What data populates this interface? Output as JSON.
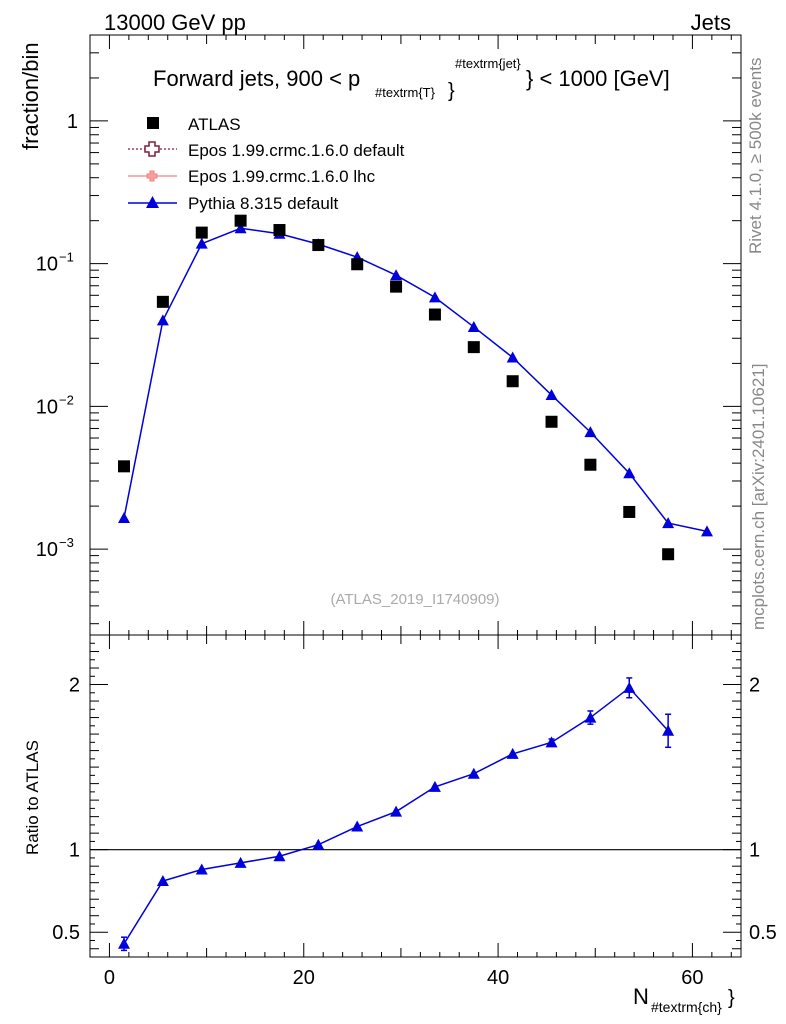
{
  "header": {
    "left": "13000 GeV pp",
    "right": "Jets"
  },
  "side_labels": {
    "rivet": "Rivet 4.1.0, ≥ 500k events",
    "mcplots": "mcplots.cern.ch [arXiv:2401.10621]"
  },
  "chart_data": [
    {
      "type": "scatter",
      "title": "Forward jets, 900 < p#textrm{T}#textrm{jet} < 1000 [GeV]",
      "title_parts": {
        "prefix": "Forward jets, 900 < p",
        "subscript": "#textrm{T}",
        "superscript": "#textrm{jet}",
        "suffix": "} < 1000 [GeV]"
      },
      "ylabel": "fraction/bin",
      "yscale": "log",
      "ylim": [
        0.00025,
        4
      ],
      "xlim": [
        -2,
        65
      ],
      "y_tick_labels": [
        {
          "value": 1,
          "base": "1",
          "exp": ""
        },
        {
          "value": 0.1,
          "base": "10",
          "exp": "−1"
        },
        {
          "value": 0.01,
          "base": "10",
          "exp": "−2"
        },
        {
          "value": 0.001,
          "base": "10",
          "exp": "−3"
        }
      ],
      "watermark": "(ATLAS_2019_I1740909)",
      "legend_position": "top-left",
      "legend": [
        {
          "label": "ATLAS",
          "color": "#000000",
          "marker": "square"
        },
        {
          "label": "Epos 1.99.crmc.1.6.0 default",
          "color": "#7a1f3d",
          "marker": "open-cross",
          "line": "dotted"
        },
        {
          "label": "Epos 1.99.crmc.1.6.0 lhc",
          "color": "#f08080",
          "marker": "cross",
          "line": "solid"
        },
        {
          "label": "Pythia 8.315 default",
          "color": "#0000dd",
          "marker": "triangle",
          "line": "solid"
        }
      ],
      "series": [
        {
          "name": "ATLAS",
          "x": [
            1.5,
            5.5,
            9.5,
            13.5,
            17.5,
            21.5,
            25.5,
            29.5,
            33.5,
            37.5,
            41.5,
            45.5,
            49.5,
            53.5,
            57.5
          ],
          "values": [
            0.0038,
            0.054,
            0.165,
            0.2,
            0.172,
            0.135,
            0.099,
            0.069,
            0.044,
            0.026,
            0.015,
            0.0078,
            0.0039,
            0.00182,
            0.00092
          ]
        },
        {
          "name": "Pythia 8.315 default",
          "x": [
            1.5,
            5.5,
            9.5,
            13.5,
            17.5,
            21.5,
            25.5,
            29.5,
            33.5,
            37.5,
            41.5,
            45.5,
            49.5,
            53.5,
            57.5,
            61.5
          ],
          "values": [
            0.00165,
            0.04,
            0.138,
            0.177,
            0.162,
            0.137,
            0.111,
            0.083,
            0.058,
            0.036,
            0.022,
            0.012,
            0.0066,
            0.0034,
            0.00152,
            0.00133
          ]
        }
      ]
    },
    {
      "type": "line",
      "ylabel": "Ratio to ATLAS",
      "xlabel": "N#textrm{ch}",
      "xlabel_parts": {
        "base": "N",
        "subscript": "#textrm{ch}"
      },
      "ylim": [
        0.35,
        2.3
      ],
      "xlim": [
        -2,
        65
      ],
      "x_ticks": [
        0,
        20,
        40,
        60
      ],
      "y_ticks": [
        0.5,
        1,
        2
      ],
      "y_tick_labels": [
        "0.5",
        "1",
        "2"
      ],
      "reference_line": 1,
      "series": [
        {
          "name": "Pythia 8.315 default",
          "x": [
            1.5,
            5.5,
            9.5,
            13.5,
            17.5,
            21.5,
            25.5,
            29.5,
            33.5,
            37.5,
            41.5,
            45.5,
            49.5,
            53.5,
            57.5
          ],
          "values": [
            0.43,
            0.81,
            0.88,
            0.92,
            0.96,
            1.03,
            1.14,
            1.23,
            1.38,
            1.46,
            1.58,
            1.65,
            1.8,
            1.98,
            1.72
          ],
          "errors": [
            0.04,
            0.01,
            0.01,
            0.01,
            0.01,
            0.01,
            0.01,
            0.01,
            0.01,
            0.01,
            0.01,
            0.02,
            0.04,
            0.06,
            0.1
          ]
        }
      ]
    }
  ],
  "colors": {
    "atlas": "#000000",
    "pythia": "#0000dd",
    "muted_text": "#888888"
  }
}
